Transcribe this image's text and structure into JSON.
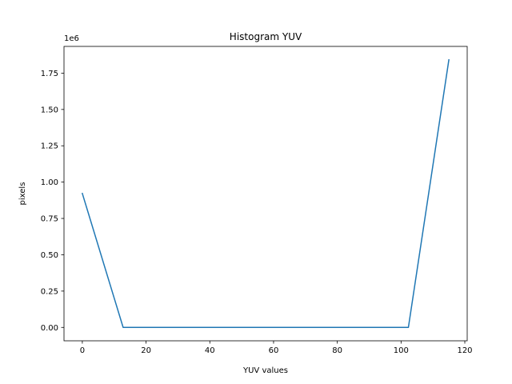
{
  "chart_data": {
    "type": "line",
    "title": "Histogram YUV",
    "xlabel": "YUV values",
    "ylabel": "pixels",
    "y_offset_text": "1e6",
    "xlim": [
      -5.75,
      120.75
    ],
    "ylim": [
      -0.0921,
      1.934
    ],
    "x_ticks": [
      0,
      20,
      40,
      60,
      80,
      100,
      120
    ],
    "x_tick_labels": [
      "0",
      "20",
      "40",
      "60",
      "80",
      "100",
      "120"
    ],
    "y_ticks": [
      0.0,
      0.25,
      0.5,
      0.75,
      1.0,
      1.25,
      1.5,
      1.75
    ],
    "y_tick_labels": [
      "0.00",
      "0.25",
      "0.50",
      "0.75",
      "1.00",
      "1.25",
      "1.50",
      "1.75"
    ],
    "grid": false,
    "legend": "none",
    "series": [
      {
        "color": "#1f77b4",
        "x": [
          0,
          12.8,
          25.6,
          38.4,
          51.1,
          63.9,
          76.7,
          89.5,
          102.3,
          115
        ],
        "y": [
          0.922,
          0,
          0,
          0,
          0,
          0,
          0,
          0,
          0,
          1.842
        ]
      }
    ]
  }
}
